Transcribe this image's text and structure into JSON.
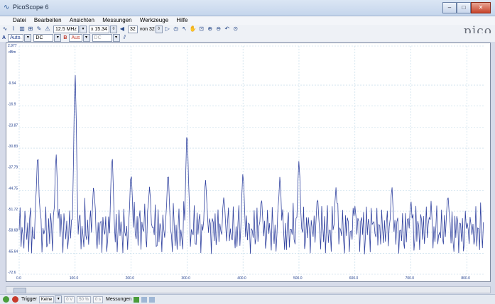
{
  "window": {
    "title": "PicoScope 6",
    "controls": [
      "–",
      "□",
      "✕"
    ]
  },
  "menu": [
    "Datei",
    "Bearbeiten",
    "Ansichten",
    "Messungen",
    "Werkzeuge",
    "Hilfe"
  ],
  "toolbar": {
    "bandwidth": "12.5 MHz",
    "zoom": "x 15.34",
    "buffer_index": "32",
    "buffer_of": "von 32"
  },
  "channel_bar": {
    "a_label": "A",
    "a_range": "Auto.",
    "a_coupling": "DC",
    "b_label": "B",
    "b_range": "Aus",
    "b_coupling": "DC"
  },
  "logo": "pico",
  "plot": {
    "y_unit": "dBm",
    "x_unit": "kHz",
    "y_ticks": [
      "2.977",
      "-9.94",
      "-16.9",
      "-23.87",
      "-30.83",
      "-37.79",
      "-44.75",
      "-51.72",
      "-58.68",
      "-65.64",
      "-72.6"
    ],
    "x_ticks": [
      "0.0",
      "100.0",
      "200.0",
      "300.0",
      "400.0",
      "500.0",
      "600.0",
      "700.0",
      "800.0"
    ],
    "trace_color": "#3344a0",
    "grid_color": "#bcd6e6"
  },
  "chart_data": {
    "type": "line",
    "xlabel": "kHz",
    "ylabel": "dBm",
    "xlim": [
      0,
      830
    ],
    "ylim": [
      -72.6,
      2.977
    ],
    "peaks": [
      {
        "x": 100,
        "y": -6
      },
      {
        "x": 33,
        "y": -33
      },
      {
        "x": 66,
        "y": -33
      },
      {
        "x": 133,
        "y": -44
      },
      {
        "x": 166,
        "y": -33
      },
      {
        "x": 200,
        "y": -39
      },
      {
        "x": 233,
        "y": -44
      },
      {
        "x": 266,
        "y": -39
      },
      {
        "x": 300,
        "y": -25
      },
      {
        "x": 333,
        "y": -41
      },
      {
        "x": 366,
        "y": -47
      },
      {
        "x": 400,
        "y": -39
      },
      {
        "x": 433,
        "y": -48
      },
      {
        "x": 466,
        "y": -41
      },
      {
        "x": 500,
        "y": -35
      },
      {
        "x": 533,
        "y": -48
      },
      {
        "x": 566,
        "y": -44
      },
      {
        "x": 600,
        "y": -50
      },
      {
        "x": 633,
        "y": -55
      },
      {
        "x": 666,
        "y": -44
      },
      {
        "x": 700,
        "y": -49
      },
      {
        "x": 733,
        "y": -53
      },
      {
        "x": 766,
        "y": -46
      },
      {
        "x": 800,
        "y": -56
      },
      {
        "x": 833,
        "y": -52
      }
    ],
    "noise_floor": -66,
    "grid": true
  },
  "status": {
    "trigger_label": "Trigger",
    "trigger_mode": "Keine",
    "level": "0 V",
    "pretrigger": "50 %",
    "delay": "0 s",
    "measurements_label": "Messungen"
  }
}
